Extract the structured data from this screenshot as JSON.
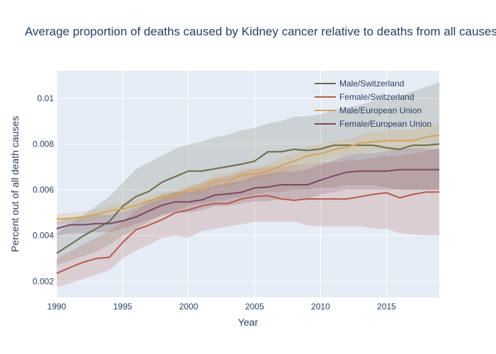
{
  "chart_data": {
    "type": "line",
    "title": "Average proportion of deaths caused by Kidney cancer relative to deaths from all causes",
    "xlabel": "Year",
    "ylabel": "Percent out of all death causes",
    "xlim": [
      1990,
      2019
    ],
    "ylim": [
      0.0013,
      0.0112
    ],
    "x_ticks": [
      1990,
      1995,
      2000,
      2005,
      2010,
      2015
    ],
    "y_ticks": [
      0.002,
      0.004,
      0.006,
      0.008,
      0.01
    ],
    "y_tick_labels": [
      "0.002",
      "0.004",
      "0.006",
      "0.008",
      "0.01"
    ],
    "grid": true,
    "legend_position": "top-right",
    "x": [
      1990,
      1991,
      1992,
      1993,
      1994,
      1995,
      1996,
      1997,
      1998,
      1999,
      2000,
      2001,
      2002,
      2003,
      2004,
      2005,
      2006,
      2007,
      2008,
      2009,
      2010,
      2011,
      2012,
      2013,
      2014,
      2015,
      2016,
      2017,
      2018,
      2019
    ],
    "series": [
      {
        "name": "Male/Switzerland",
        "color": "#6b6a4a",
        "values": [
          0.00323,
          0.0036,
          0.00398,
          0.0043,
          0.00462,
          0.00528,
          0.0057,
          0.00593,
          0.00634,
          0.00658,
          0.00682,
          0.00682,
          0.00692,
          0.00702,
          0.00712,
          0.00725,
          0.00766,
          0.00766,
          0.00777,
          0.00772,
          0.00778,
          0.00795,
          0.00795,
          0.00795,
          0.00795,
          0.00783,
          0.00777,
          0.00795,
          0.00795,
          0.008
        ],
        "lower": [
          0.0027,
          0.0029,
          0.0031,
          0.0033,
          0.0036,
          0.004,
          0.0043,
          0.0046,
          0.0049,
          0.0051,
          0.0053,
          0.0054,
          0.0055,
          0.0056,
          0.0057,
          0.0058,
          0.0059,
          0.0059,
          0.006,
          0.006,
          0.0061,
          0.0061,
          0.0062,
          0.0062,
          0.0062,
          0.0061,
          0.006,
          0.006,
          0.006,
          0.006
        ],
        "upper": [
          0.0041,
          0.0045,
          0.0049,
          0.0053,
          0.0057,
          0.0063,
          0.0069,
          0.0072,
          0.0075,
          0.0078,
          0.008,
          0.0081,
          0.0083,
          0.0084,
          0.0086,
          0.0087,
          0.0089,
          0.009,
          0.0092,
          0.0092,
          0.0093,
          0.0095,
          0.0096,
          0.0097,
          0.0099,
          0.01,
          0.0101,
          0.0103,
          0.0105,
          0.0107
        ]
      },
      {
        "name": "Female/Switzerland",
        "color": "#b55a4a",
        "values": [
          0.00235,
          0.0026,
          0.00283,
          0.003,
          0.00305,
          0.0037,
          0.00425,
          0.00446,
          0.0047,
          0.005,
          0.00512,
          0.0053,
          0.0054,
          0.0054,
          0.0056,
          0.0057,
          0.00575,
          0.0056,
          0.00554,
          0.0056,
          0.0056,
          0.0056,
          0.0056,
          0.0057,
          0.0058,
          0.00587,
          0.00565,
          0.0058,
          0.0059,
          0.0059
        ],
        "lower": [
          0.00175,
          0.0019,
          0.0021,
          0.0023,
          0.0025,
          0.003,
          0.00335,
          0.0036,
          0.0039,
          0.004,
          0.0039,
          0.0042,
          0.0043,
          0.0044,
          0.0045,
          0.0046,
          0.0046,
          0.0046,
          0.0046,
          0.00445,
          0.0044,
          0.0044,
          0.0044,
          0.0044,
          0.0043,
          0.0043,
          0.0041,
          0.00405,
          0.004,
          0.004
        ],
        "upper": [
          0.003,
          0.0033,
          0.0036,
          0.0039,
          0.0042,
          0.0046,
          0.0051,
          0.0054,
          0.0056,
          0.0059,
          0.0061,
          0.0063,
          0.0065,
          0.0066,
          0.0068,
          0.0069,
          0.007,
          0.007,
          0.0071,
          0.0071,
          0.0072,
          0.0072,
          0.0073,
          0.0073,
          0.0074,
          0.0075,
          0.0075,
          0.0076,
          0.0077,
          0.0078
        ]
      },
      {
        "name": "Male/European Union",
        "color": "#d3a35a",
        "values": [
          0.00472,
          0.00475,
          0.00482,
          0.00492,
          0.00508,
          0.00516,
          0.00532,
          0.00552,
          0.00568,
          0.00576,
          0.00599,
          0.00603,
          0.0064,
          0.0064,
          0.00663,
          0.00669,
          0.00681,
          0.00706,
          0.00725,
          0.00748,
          0.00758,
          0.00775,
          0.00787,
          0.00803,
          0.0081,
          0.00815,
          0.00815,
          0.00815,
          0.0083,
          0.0084
        ],
        "lower": [
          0.0045,
          0.00455,
          0.0046,
          0.0047,
          0.00485,
          0.00495,
          0.0051,
          0.0053,
          0.0055,
          0.0056,
          0.0058,
          0.0058,
          0.0061,
          0.0061,
          0.0063,
          0.0064,
          0.0065,
          0.0067,
          0.0069,
          0.0071,
          0.0072,
          0.0074,
          0.0075,
          0.0076,
          0.0077,
          0.0077,
          0.0077,
          0.0077,
          0.0078,
          0.0079
        ],
        "upper": [
          0.00495,
          0.005,
          0.00505,
          0.00515,
          0.0053,
          0.0054,
          0.00555,
          0.00575,
          0.0059,
          0.006,
          0.0062,
          0.0063,
          0.0067,
          0.0067,
          0.0069,
          0.007,
          0.0071,
          0.0074,
          0.0076,
          0.0079,
          0.008,
          0.0081,
          0.0082,
          0.0084,
          0.0085,
          0.0086,
          0.0086,
          0.0086,
          0.0088,
          0.0089
        ]
      },
      {
        "name": "Female/European Union",
        "color": "#7a4a60",
        "values": [
          0.0043,
          0.00447,
          0.00447,
          0.00452,
          0.00452,
          0.00464,
          0.00481,
          0.00508,
          0.00533,
          0.00547,
          0.00547,
          0.00556,
          0.00577,
          0.00582,
          0.00589,
          0.00608,
          0.00612,
          0.00622,
          0.00622,
          0.00622,
          0.00642,
          0.00661,
          0.00677,
          0.00682,
          0.00682,
          0.00682,
          0.00688,
          0.00688,
          0.00688,
          0.00688
        ],
        "lower": [
          0.004,
          0.0041,
          0.0041,
          0.00415,
          0.00415,
          0.0043,
          0.0045,
          0.0047,
          0.0049,
          0.005,
          0.005,
          0.0051,
          0.0053,
          0.0053,
          0.0054,
          0.0055,
          0.0055,
          0.0056,
          0.0056,
          0.0056,
          0.0058,
          0.0059,
          0.006,
          0.006,
          0.006,
          0.006,
          0.006,
          0.006,
          0.006,
          0.006
        ],
        "upper": [
          0.0046,
          0.0048,
          0.0048,
          0.0049,
          0.0049,
          0.005,
          0.0052,
          0.0055,
          0.0058,
          0.0059,
          0.0059,
          0.006,
          0.0062,
          0.0063,
          0.0064,
          0.0066,
          0.0067,
          0.0068,
          0.0068,
          0.0069,
          0.0071,
          0.0073,
          0.0075,
          0.0076,
          0.0076,
          0.0077,
          0.0078,
          0.0078,
          0.0078,
          0.0078
        ]
      }
    ]
  }
}
